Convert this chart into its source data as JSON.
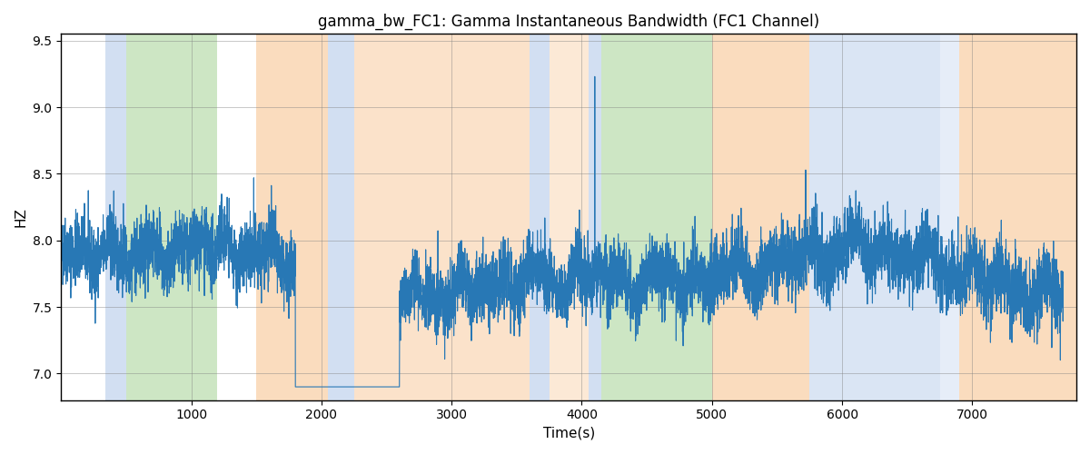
{
  "title": "gamma_bw_FC1: Gamma Instantaneous Bandwidth (FC1 Channel)",
  "xlabel": "Time(s)",
  "ylabel": "HZ",
  "xlim": [
    0,
    7800
  ],
  "ylim": [
    6.8,
    9.55
  ],
  "yticks": [
    7.0,
    7.5,
    8.0,
    8.5,
    9.0,
    9.5
  ],
  "xticks": [
    1000,
    2000,
    3000,
    4000,
    5000,
    6000,
    7000
  ],
  "line_color": "#2878b5",
  "line_width": 0.8,
  "bg_color": "#ffffff",
  "bands": [
    {
      "start": 340,
      "end": 500,
      "color": "#aec6e8",
      "alpha": 0.55
    },
    {
      "start": 500,
      "end": 1200,
      "color": "#90c97e",
      "alpha": 0.45
    },
    {
      "start": 1500,
      "end": 2050,
      "color": "#f7c08a",
      "alpha": 0.55
    },
    {
      "start": 2050,
      "end": 2250,
      "color": "#aec6e8",
      "alpha": 0.55
    },
    {
      "start": 2250,
      "end": 3600,
      "color": "#f7c08a",
      "alpha": 0.45
    },
    {
      "start": 3600,
      "end": 3750,
      "color": "#aec6e8",
      "alpha": 0.55
    },
    {
      "start": 3750,
      "end": 4050,
      "color": "#f7c08a",
      "alpha": 0.35
    },
    {
      "start": 4050,
      "end": 4150,
      "color": "#aec6e8",
      "alpha": 0.55
    },
    {
      "start": 4150,
      "end": 5000,
      "color": "#90c97e",
      "alpha": 0.45
    },
    {
      "start": 5000,
      "end": 5750,
      "color": "#f7c08a",
      "alpha": 0.55
    },
    {
      "start": 5750,
      "end": 6750,
      "color": "#aec6e8",
      "alpha": 0.45
    },
    {
      "start": 6750,
      "end": 6900,
      "color": "#aec6e8",
      "alpha": 0.3
    },
    {
      "start": 6900,
      "end": 7800,
      "color": "#f7c08a",
      "alpha": 0.55
    }
  ],
  "seed": 42,
  "n_points": 7700,
  "signal_mean": 7.75
}
